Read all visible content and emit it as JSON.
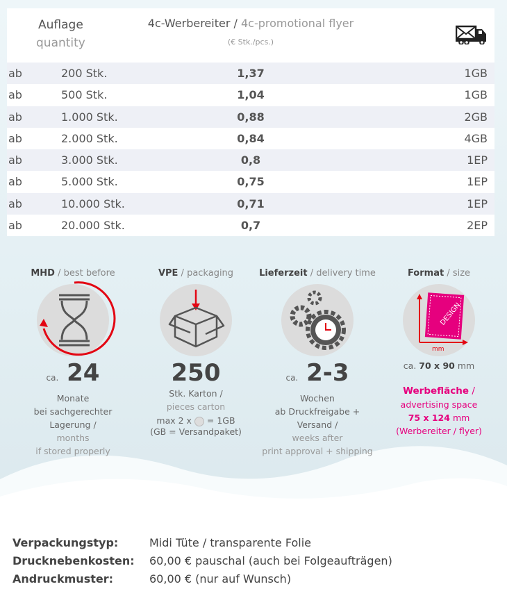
{
  "table": {
    "header": {
      "quantity_de": "Auflage",
      "quantity_en": "quantity",
      "product_de": "4c-Werbereiter",
      "product_sep": " / ",
      "product_en": "4c-promotional flyer",
      "unit_note": "(€ Stk./pcs.)",
      "shipping_icon": "mail-truck-icon"
    },
    "rows": [
      {
        "prefix": "ab",
        "quantity": "200 Stk.",
        "price": "1,37",
        "shipping": "1GB"
      },
      {
        "prefix": "ab",
        "quantity": "500 Stk.",
        "price": "1,04",
        "shipping": "1GB"
      },
      {
        "prefix": "ab",
        "quantity": "1.000 Stk.",
        "price": "0,88",
        "shipping": "2GB"
      },
      {
        "prefix": "ab",
        "quantity": "2.000 Stk.",
        "price": "0,84",
        "shipping": "4GB"
      },
      {
        "prefix": "ab",
        "quantity": "3.000 Stk.",
        "price": "0,8",
        "shipping": "1EP"
      },
      {
        "prefix": "ab",
        "quantity": "5.000 Stk.",
        "price": "0,75",
        "shipping": "1EP"
      },
      {
        "prefix": "ab",
        "quantity": "10.000 Stk.",
        "price": "0,71",
        "shipping": "1EP"
      },
      {
        "prefix": "ab",
        "quantity": "20.000 Stk.",
        "price": "0,7",
        "shipping": "2EP"
      }
    ]
  },
  "features": {
    "mhd": {
      "title_de": "MHD",
      "title_en": " / best before",
      "prefix": "ca.",
      "value": "24",
      "line1": "Monate",
      "line2": "bei sachgerechter Lagerung /",
      "line3": "months",
      "line4": "if stored properly"
    },
    "vpe": {
      "title_de": "VPE",
      "title_en": " / packaging",
      "value": "250",
      "line1": "Stk. Karton /",
      "line2": "pieces carton",
      "line3a": "max 2 x",
      "line3b": "= 1GB",
      "line4": "(GB = Versandpaket)"
    },
    "delivery": {
      "title_de": "Lieferzeit",
      "title_en": " / delivery time",
      "prefix": "ca.",
      "value": "2-3",
      "line1": "Wochen",
      "line2": "ab Druckfreigabe + Versand /",
      "line3": "weeks after",
      "line4": "print approval + shipping"
    },
    "format": {
      "title_de": "Format",
      "title_en": " / size",
      "icon_label": "DESIGN",
      "icon_unit": "mm",
      "size_prefix": "ca.",
      "size": "70 x 90",
      "size_unit": " mm",
      "area_de": "Werbefläche",
      "area_sep": " /",
      "area_en": "advertising space",
      "area_size": "75 x 124",
      "area_unit": " mm",
      "area_note": "(Werbereiter / flyer)"
    }
  },
  "info": [
    {
      "label": "Verpackungstyp:",
      "value": "Midi Tüte / transparente Folie"
    },
    {
      "label": "Drucknebenkosten:",
      "value": "60,00 € pauschal (auch bei Folgeaufträgen)"
    },
    {
      "label": "Andruckmuster:",
      "value": "60,00 € (nur auf Wunsch)"
    }
  ],
  "colors": {
    "accent_red": "#e30613",
    "accent_pink": "#e6007e",
    "row_alt": "#eef0f6"
  }
}
